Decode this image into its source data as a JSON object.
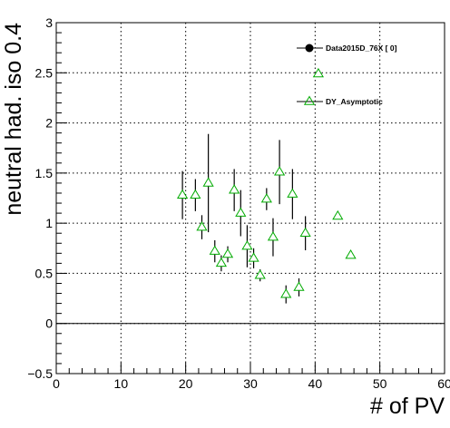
{
  "chart_data": {
    "type": "scatter",
    "xlabel": "# of PV",
    "ylabel": "neutral had. iso 0.4",
    "xlim": [
      0,
      60
    ],
    "ylim": [
      -0.5,
      3
    ],
    "x_ticks": [
      0,
      10,
      20,
      30,
      40,
      50,
      60
    ],
    "x_tick_labels": [
      "0",
      "10",
      "20",
      "30",
      "40",
      "50",
      "60"
    ],
    "y_ticks": [
      -0.5,
      0,
      0.5,
      1,
      1.5,
      2,
      2.5,
      3
    ],
    "y_tick_labels": [
      "−0.5",
      "0",
      "0.5",
      "1",
      "1.5",
      "2",
      "2.5",
      "3"
    ],
    "grid": true,
    "reference_line_y": 0,
    "legend_placement": "top-right",
    "series": [
      {
        "name": "Data2015D_76X [       0]",
        "marker": "filled-circle",
        "color": "#000000",
        "points": []
      },
      {
        "name": "DY_Asymptotic",
        "marker": "open-triangle",
        "color": "#00aa00",
        "points": [
          {
            "x": 19.5,
            "y": 1.28,
            "err": 0.24
          },
          {
            "x": 21.5,
            "y": 1.28,
            "err": 0.16
          },
          {
            "x": 22.5,
            "y": 0.96,
            "err": 0.12
          },
          {
            "x": 23.5,
            "y": 1.4,
            "err": 0.49
          },
          {
            "x": 24.5,
            "y": 0.72,
            "err": 0.11
          },
          {
            "x": 25.5,
            "y": 0.6,
            "err": 0.08
          },
          {
            "x": 26.5,
            "y": 0.69,
            "err": 0.08
          },
          {
            "x": 27.5,
            "y": 1.33,
            "err": 0.21
          },
          {
            "x": 28.5,
            "y": 1.1,
            "err": 0.23
          },
          {
            "x": 29.5,
            "y": 0.77,
            "err": 0.21
          },
          {
            "x": 30.5,
            "y": 0.65,
            "err": 0.1
          },
          {
            "x": 31.5,
            "y": 0.48,
            "err": 0.06
          },
          {
            "x": 32.5,
            "y": 1.24,
            "err": 0.11
          },
          {
            "x": 33.5,
            "y": 0.86,
            "err": 0.19
          },
          {
            "x": 34.5,
            "y": 1.51,
            "err": 0.32
          },
          {
            "x": 35.5,
            "y": 0.29,
            "err": 0.09
          },
          {
            "x": 36.5,
            "y": 1.29,
            "err": 0.25
          },
          {
            "x": 37.5,
            "y": 0.36,
            "err": 0.09
          },
          {
            "x": 38.5,
            "y": 0.9,
            "err": 0.17
          },
          {
            "x": 40.5,
            "y": 2.49,
            "err": 0.0
          },
          {
            "x": 43.5,
            "y": 1.07,
            "err": 0.0
          },
          {
            "x": 45.5,
            "y": 0.68,
            "err": 0.0
          }
        ]
      }
    ]
  }
}
